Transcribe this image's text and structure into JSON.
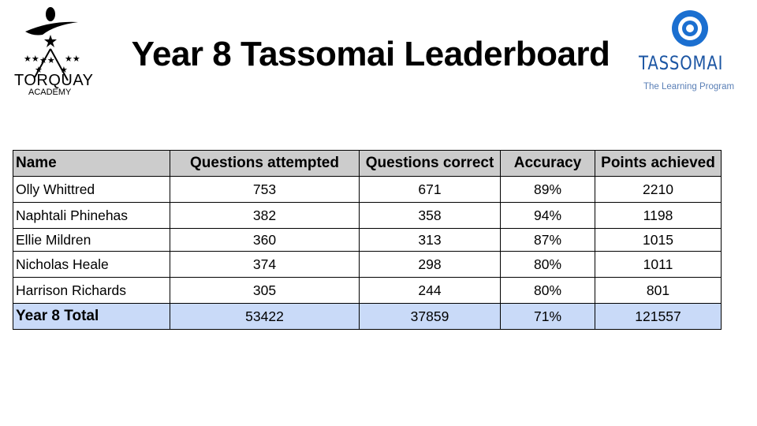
{
  "title": "Year 8 Tassomai Leaderboard",
  "logos": {
    "left": {
      "text1": "TORQUAY",
      "text2": "ACADEMY"
    },
    "right": {
      "text1": "TASSOMAI",
      "text2": "The Learning Program",
      "color": "#1b55a3"
    }
  },
  "table": {
    "headers": [
      "Name",
      "Questions attempted",
      "Questions correct",
      "Accuracy",
      "Points achieved"
    ],
    "rows": [
      [
        "Olly Whittred",
        "753",
        "671",
        "89%",
        "2210"
      ],
      [
        "Naphtali Phinehas",
        "382",
        "358",
        "94%",
        "1198"
      ],
      [
        "Ellie Mildren",
        "360",
        "313",
        "87%",
        "1015"
      ],
      [
        "Nicholas Heale",
        "374",
        "298",
        "80%",
        "1011"
      ],
      [
        "Harrison Richards",
        "305",
        "244",
        "80%",
        "801"
      ]
    ],
    "total": [
      "Year 8 Total",
      "53422",
      "37859",
      "71%",
      "121557"
    ],
    "header_bg": "#cccccc",
    "total_bg": "#c9daf8"
  }
}
